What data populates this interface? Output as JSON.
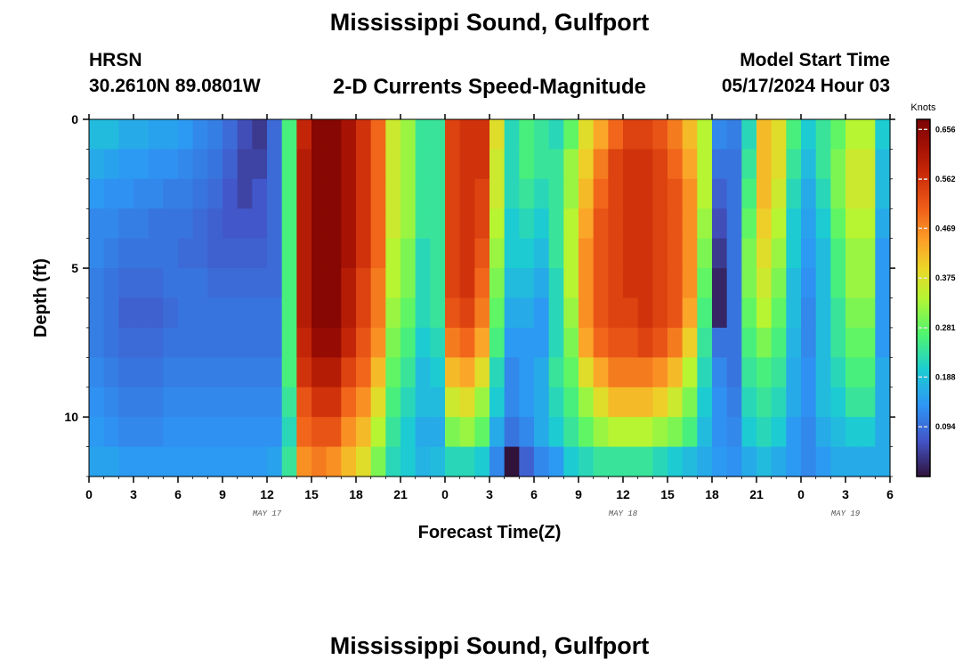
{
  "header": {
    "title": "Mississippi Sound, Gulfport",
    "station": "HRSN",
    "coords": "30.2610N  89.0801W",
    "subtitle": "2-D Currents Speed-Magnitude",
    "model_label": "Model Start Time",
    "model_time": "05/17/2024 Hour 03"
  },
  "footer": {
    "title": "Mississippi Sound, Gulfport"
  },
  "chart_data": {
    "type": "heatmap",
    "title": "2-D Currents Speed-Magnitude",
    "xlabel": "Forecast Time(Z)",
    "ylabel": "Depth (ft)",
    "x_start_hour": 0,
    "x_end_hour": 54,
    "x_tick_hours": [
      0,
      3,
      6,
      9,
      12,
      15,
      18,
      21,
      24,
      27,
      30,
      33,
      36,
      39,
      42,
      45,
      48,
      51,
      54
    ],
    "x_tick_labels": [
      "0",
      "3",
      "6",
      "9",
      "12",
      "15",
      "18",
      "21",
      "0",
      "3",
      "6",
      "9",
      "12",
      "15",
      "18",
      "21",
      "0",
      "3",
      "6"
    ],
    "date_labels": [
      {
        "hour": 12,
        "text": "MAY 17"
      },
      {
        "hour": 36,
        "text": "MAY 18"
      },
      {
        "hour": 51,
        "text": "MAY 19"
      }
    ],
    "ylim": [
      0,
      12
    ],
    "y_ticks": [
      0,
      5,
      10
    ],
    "y_direction": "down",
    "depth_levels": 12,
    "time_steps": 54,
    "colorbar": {
      "unit": "Knots",
      "min": 0,
      "max": 0.675,
      "ticks": [
        0.094,
        0.188,
        0.281,
        0.375,
        0.469,
        0.562,
        0.656
      ],
      "tick_labels": [
        "0.094",
        "0.188",
        "0.281",
        "0.375",
        "0.469",
        "0.562",
        "0.656"
      ]
    },
    "values": [
      [
        0.18,
        0.18,
        0.16,
        0.16,
        0.15,
        0.15,
        0.14,
        0.12,
        0.11,
        0.09,
        0.06,
        0.04,
        0.09,
        0.26,
        0.58,
        0.66,
        0.66,
        0.62,
        0.56,
        0.5,
        0.36,
        0.32,
        0.24,
        0.24,
        0.54,
        0.56,
        0.56,
        0.38,
        0.22,
        0.26,
        0.24,
        0.22,
        0.28,
        0.38,
        0.44,
        0.5,
        0.54,
        0.54,
        0.52,
        0.48,
        0.42,
        0.34,
        0.12,
        0.11,
        0.22,
        0.42,
        0.38,
        0.26,
        0.2,
        0.24,
        0.28,
        0.34,
        0.34,
        0.2
      ],
      [
        0.16,
        0.15,
        0.14,
        0.14,
        0.13,
        0.13,
        0.12,
        0.11,
        0.1,
        0.08,
        0.05,
        0.05,
        0.09,
        0.26,
        0.6,
        0.66,
        0.66,
        0.62,
        0.56,
        0.5,
        0.36,
        0.32,
        0.24,
        0.24,
        0.54,
        0.56,
        0.56,
        0.36,
        0.22,
        0.26,
        0.24,
        0.24,
        0.32,
        0.4,
        0.48,
        0.54,
        0.56,
        0.56,
        0.54,
        0.5,
        0.44,
        0.34,
        0.1,
        0.1,
        0.24,
        0.42,
        0.38,
        0.24,
        0.18,
        0.24,
        0.3,
        0.36,
        0.36,
        0.18
      ],
      [
        0.14,
        0.13,
        0.13,
        0.12,
        0.12,
        0.11,
        0.11,
        0.1,
        0.09,
        0.07,
        0.05,
        0.07,
        0.09,
        0.26,
        0.6,
        0.66,
        0.66,
        0.62,
        0.56,
        0.5,
        0.36,
        0.32,
        0.24,
        0.24,
        0.54,
        0.56,
        0.54,
        0.36,
        0.22,
        0.24,
        0.22,
        0.24,
        0.32,
        0.42,
        0.5,
        0.54,
        0.56,
        0.56,
        0.54,
        0.52,
        0.46,
        0.34,
        0.08,
        0.1,
        0.26,
        0.42,
        0.36,
        0.22,
        0.16,
        0.22,
        0.3,
        0.36,
        0.36,
        0.18
      ],
      [
        0.12,
        0.12,
        0.11,
        0.11,
        0.1,
        0.1,
        0.1,
        0.09,
        0.08,
        0.07,
        0.07,
        0.07,
        0.09,
        0.26,
        0.6,
        0.66,
        0.66,
        0.62,
        0.56,
        0.5,
        0.36,
        0.32,
        0.24,
        0.24,
        0.54,
        0.56,
        0.54,
        0.34,
        0.2,
        0.22,
        0.2,
        0.24,
        0.34,
        0.44,
        0.52,
        0.54,
        0.56,
        0.56,
        0.54,
        0.52,
        0.46,
        0.32,
        0.06,
        0.1,
        0.28,
        0.4,
        0.34,
        0.2,
        0.15,
        0.2,
        0.28,
        0.34,
        0.34,
        0.16
      ],
      [
        0.12,
        0.11,
        0.1,
        0.1,
        0.1,
        0.1,
        0.09,
        0.09,
        0.08,
        0.08,
        0.08,
        0.08,
        0.09,
        0.26,
        0.6,
        0.66,
        0.66,
        0.62,
        0.56,
        0.5,
        0.34,
        0.3,
        0.22,
        0.24,
        0.54,
        0.56,
        0.52,
        0.32,
        0.2,
        0.2,
        0.18,
        0.24,
        0.34,
        0.46,
        0.52,
        0.54,
        0.56,
        0.56,
        0.54,
        0.52,
        0.46,
        0.3,
        0.04,
        0.1,
        0.3,
        0.38,
        0.32,
        0.2,
        0.14,
        0.18,
        0.26,
        0.32,
        0.32,
        0.14
      ],
      [
        0.11,
        0.1,
        0.09,
        0.09,
        0.09,
        0.1,
        0.1,
        0.1,
        0.09,
        0.09,
        0.09,
        0.09,
        0.09,
        0.26,
        0.6,
        0.66,
        0.66,
        0.6,
        0.54,
        0.48,
        0.34,
        0.3,
        0.22,
        0.24,
        0.54,
        0.56,
        0.5,
        0.3,
        0.18,
        0.18,
        0.16,
        0.22,
        0.34,
        0.46,
        0.52,
        0.54,
        0.56,
        0.56,
        0.54,
        0.52,
        0.46,
        0.28,
        0.02,
        0.1,
        0.3,
        0.36,
        0.3,
        0.18,
        0.13,
        0.18,
        0.26,
        0.32,
        0.32,
        0.14
      ],
      [
        0.11,
        0.1,
        0.08,
        0.08,
        0.08,
        0.09,
        0.1,
        0.1,
        0.1,
        0.1,
        0.1,
        0.1,
        0.1,
        0.26,
        0.6,
        0.66,
        0.66,
        0.6,
        0.54,
        0.48,
        0.32,
        0.28,
        0.22,
        0.24,
        0.52,
        0.54,
        0.48,
        0.28,
        0.16,
        0.16,
        0.14,
        0.22,
        0.32,
        0.46,
        0.52,
        0.54,
        0.54,
        0.56,
        0.54,
        0.52,
        0.44,
        0.26,
        0.02,
        0.1,
        0.28,
        0.34,
        0.28,
        0.18,
        0.12,
        0.18,
        0.24,
        0.3,
        0.3,
        0.14
      ],
      [
        0.11,
        0.1,
        0.09,
        0.09,
        0.09,
        0.1,
        0.1,
        0.1,
        0.1,
        0.1,
        0.1,
        0.1,
        0.1,
        0.26,
        0.58,
        0.64,
        0.64,
        0.58,
        0.52,
        0.46,
        0.3,
        0.26,
        0.2,
        0.22,
        0.48,
        0.5,
        0.44,
        0.26,
        0.14,
        0.14,
        0.14,
        0.22,
        0.3,
        0.44,
        0.5,
        0.52,
        0.52,
        0.54,
        0.52,
        0.48,
        0.4,
        0.24,
        0.1,
        0.1,
        0.26,
        0.3,
        0.26,
        0.17,
        0.12,
        0.18,
        0.24,
        0.28,
        0.28,
        0.14
      ],
      [
        0.12,
        0.11,
        0.1,
        0.1,
        0.1,
        0.11,
        0.11,
        0.11,
        0.11,
        0.11,
        0.11,
        0.11,
        0.11,
        0.26,
        0.56,
        0.6,
        0.6,
        0.54,
        0.5,
        0.42,
        0.28,
        0.24,
        0.18,
        0.2,
        0.42,
        0.44,
        0.38,
        0.22,
        0.12,
        0.14,
        0.16,
        0.24,
        0.28,
        0.38,
        0.44,
        0.48,
        0.48,
        0.48,
        0.46,
        0.42,
        0.34,
        0.22,
        0.12,
        0.1,
        0.24,
        0.26,
        0.24,
        0.16,
        0.13,
        0.18,
        0.22,
        0.26,
        0.26,
        0.16
      ],
      [
        0.13,
        0.12,
        0.11,
        0.11,
        0.11,
        0.12,
        0.12,
        0.12,
        0.12,
        0.12,
        0.12,
        0.12,
        0.12,
        0.24,
        0.52,
        0.56,
        0.56,
        0.5,
        0.46,
        0.38,
        0.26,
        0.22,
        0.18,
        0.18,
        0.36,
        0.38,
        0.32,
        0.2,
        0.12,
        0.14,
        0.16,
        0.22,
        0.26,
        0.32,
        0.38,
        0.42,
        0.42,
        0.42,
        0.4,
        0.36,
        0.3,
        0.2,
        0.13,
        0.11,
        0.22,
        0.24,
        0.22,
        0.16,
        0.13,
        0.18,
        0.2,
        0.24,
        0.24,
        0.16
      ],
      [
        0.14,
        0.13,
        0.12,
        0.12,
        0.12,
        0.13,
        0.13,
        0.13,
        0.13,
        0.13,
        0.13,
        0.13,
        0.13,
        0.22,
        0.5,
        0.52,
        0.52,
        0.46,
        0.42,
        0.34,
        0.24,
        0.2,
        0.16,
        0.16,
        0.3,
        0.32,
        0.28,
        0.16,
        0.1,
        0.12,
        0.16,
        0.2,
        0.24,
        0.28,
        0.32,
        0.34,
        0.34,
        0.34,
        0.32,
        0.3,
        0.26,
        0.18,
        0.13,
        0.12,
        0.2,
        0.22,
        0.2,
        0.14,
        0.12,
        0.16,
        0.18,
        0.2,
        0.2,
        0.16
      ],
      [
        0.15,
        0.15,
        0.14,
        0.14,
        0.14,
        0.14,
        0.14,
        0.14,
        0.14,
        0.14,
        0.14,
        0.14,
        0.15,
        0.24,
        0.46,
        0.48,
        0.46,
        0.42,
        0.38,
        0.3,
        0.22,
        0.2,
        0.17,
        0.18,
        0.22,
        0.22,
        0.2,
        0.12,
        0.0,
        0.08,
        0.12,
        0.14,
        0.2,
        0.22,
        0.24,
        0.24,
        0.24,
        0.24,
        0.22,
        0.2,
        0.18,
        0.16,
        0.14,
        0.13,
        0.16,
        0.18,
        0.16,
        0.14,
        0.12,
        0.14,
        0.16,
        0.16,
        0.16,
        0.16
      ]
    ]
  }
}
